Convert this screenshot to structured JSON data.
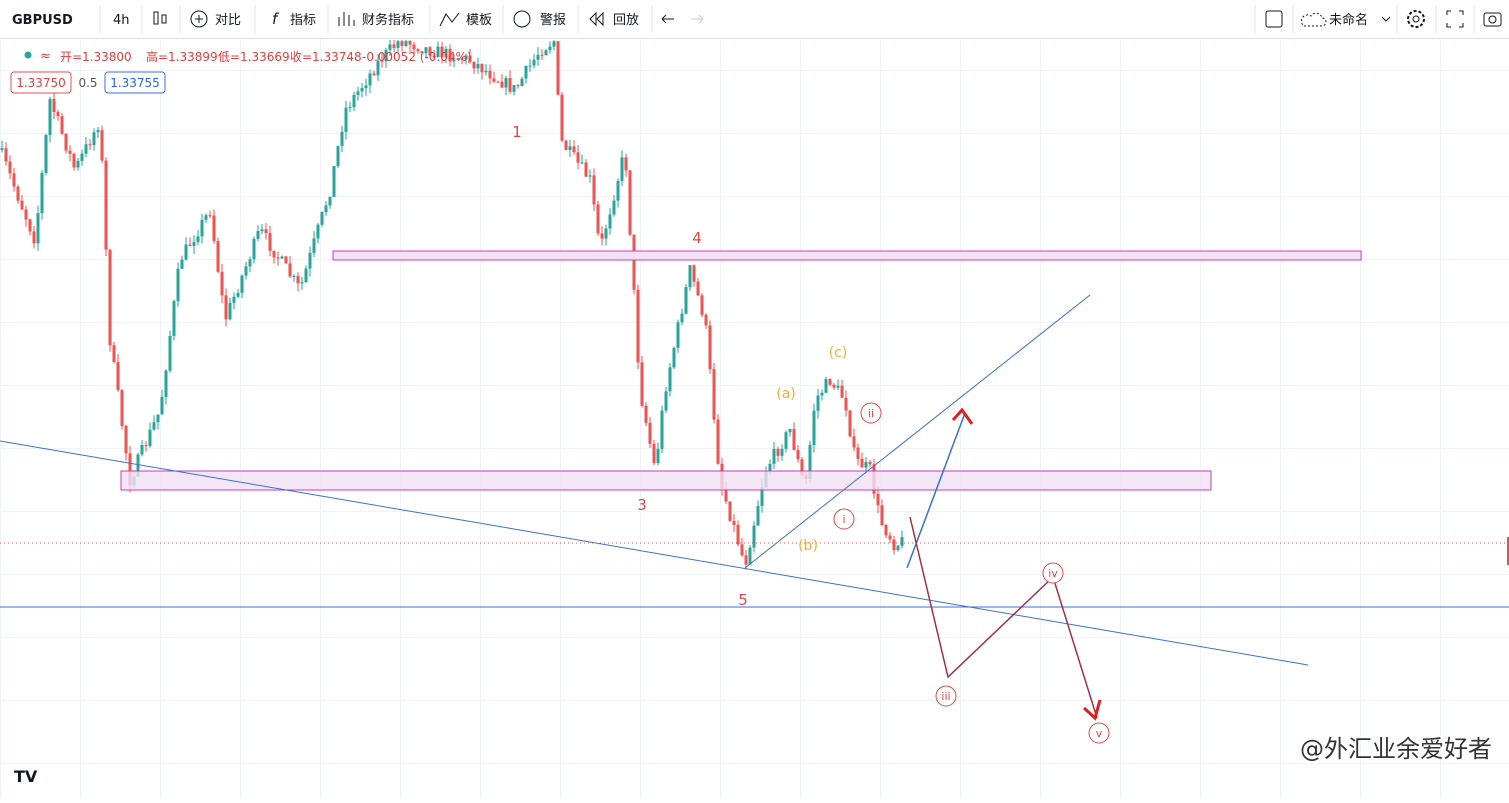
{
  "toolbar": {
    "symbol": "GBPUSD",
    "interval": "4h",
    "items": [
      "对比",
      "指标",
      "财务指标",
      "模板",
      "警报",
      "回放"
    ],
    "layout_name": "未命名"
  },
  "legend": {
    "ohlc": [
      "开=1.33800",
      "高=1.33899",
      "低=1.33669",
      "收=1.33748"
    ],
    "change": "-0.00052 (-0.04%)"
  },
  "price_boxes": [
    "1.33750",
    "0.5",
    "1.33755"
  ],
  "wave_labels": {
    "main": [
      "1",
      "3",
      "4",
      "5"
    ],
    "abc": [
      "(a)",
      "(b)",
      "(c)"
    ],
    "sub": [
      "i",
      "ii",
      "iii",
      "iv",
      "v"
    ]
  },
  "watermark": "@外汇业余爱好者"
}
